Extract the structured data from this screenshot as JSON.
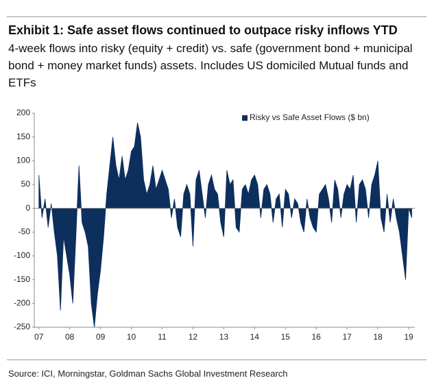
{
  "chart_data": {
    "type": "area",
    "title": "Exhibit 1: Safe asset flows continued to outpace risky inflows YTD",
    "subtitle": "4-week flows into risky (equity + credit) vs. safe (government bond + municipal bond + money market funds) assets. Includes US domiciled Mutual funds and ETFs",
    "source": "Source: ICI, Morningstar, Goldman Sachs Global Investment Research",
    "legend": "upper right",
    "x": [
      7.0,
      7.1,
      7.2,
      7.3,
      7.4,
      7.5,
      7.6,
      7.7,
      7.8,
      7.9,
      8.0,
      8.1,
      8.2,
      8.3,
      8.4,
      8.5,
      8.6,
      8.7,
      8.8,
      8.9,
      9.0,
      9.1,
      9.2,
      9.3,
      9.4,
      9.5,
      9.6,
      9.7,
      9.8,
      9.9,
      10.0,
      10.1,
      10.2,
      10.3,
      10.4,
      10.5,
      10.6,
      10.7,
      10.8,
      10.9,
      11.0,
      11.1,
      11.2,
      11.3,
      11.4,
      11.5,
      11.6,
      11.7,
      11.8,
      11.9,
      12.0,
      12.1,
      12.2,
      12.3,
      12.4,
      12.5,
      12.6,
      12.7,
      12.8,
      12.9,
      13.0,
      13.1,
      13.2,
      13.3,
      13.4,
      13.5,
      13.6,
      13.7,
      13.8,
      13.9,
      14.0,
      14.1,
      14.2,
      14.3,
      14.4,
      14.5,
      14.6,
      14.7,
      14.8,
      14.9,
      15.0,
      15.1,
      15.2,
      15.3,
      15.4,
      15.5,
      15.6,
      15.7,
      15.8,
      15.9,
      16.0,
      16.1,
      16.2,
      16.3,
      16.4,
      16.5,
      16.6,
      16.7,
      16.8,
      16.9,
      17.0,
      17.1,
      17.2,
      17.3,
      17.4,
      17.5,
      17.6,
      17.7,
      17.8,
      17.9,
      18.0,
      18.1,
      18.2,
      18.3,
      18.4,
      18.5,
      18.6,
      18.7,
      18.8,
      18.9,
      19.0,
      19.1
    ],
    "series": [
      {
        "name": "Risky vs Safe Asset Flows ($ bn)",
        "color": "#0d2f5e",
        "values": [
          70,
          -20,
          20,
          -40,
          10,
          -50,
          -100,
          -215,
          -60,
          -100,
          -140,
          -200,
          -60,
          90,
          -30,
          -50,
          -80,
          -200,
          -250,
          -180,
          -130,
          -60,
          30,
          90,
          150,
          90,
          60,
          110,
          60,
          80,
          120,
          130,
          180,
          150,
          60,
          30,
          50,
          90,
          40,
          60,
          80,
          60,
          40,
          -20,
          20,
          -40,
          -60,
          30,
          50,
          30,
          -80,
          60,
          80,
          30,
          -20,
          50,
          70,
          40,
          30,
          -30,
          -60,
          80,
          50,
          60,
          -40,
          -50,
          40,
          50,
          30,
          60,
          70,
          50,
          -20,
          40,
          50,
          30,
          -30,
          20,
          30,
          -40,
          40,
          30,
          -20,
          20,
          10,
          -30,
          -50,
          20,
          -20,
          -40,
          -50,
          30,
          40,
          50,
          20,
          -30,
          60,
          40,
          -20,
          30,
          50,
          40,
          70,
          -30,
          50,
          60,
          40,
          -20,
          50,
          70,
          100,
          -20,
          -50,
          30,
          -30,
          20,
          -20,
          -50,
          -100,
          -150,
          0,
          -20
        ]
      }
    ],
    "xlim": [
      6.85,
      19.2
    ],
    "xticks": [
      {
        "value": 7,
        "label": "07"
      },
      {
        "value": 8,
        "label": "08"
      },
      {
        "value": 9,
        "label": "09"
      },
      10,
      11,
      12,
      13,
      14,
      15,
      16,
      17,
      18,
      19
    ],
    "ylim": [
      -250,
      200
    ],
    "yticks": [
      -250,
      -200,
      -150,
      -100,
      -50,
      0,
      50,
      100,
      150,
      200
    ],
    "grid": false
  }
}
